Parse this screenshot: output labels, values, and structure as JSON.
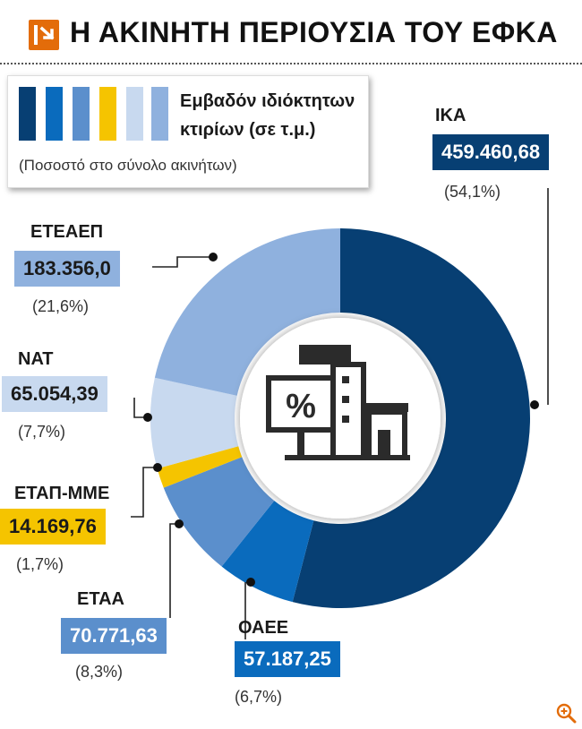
{
  "header": {
    "title": "Η ΑΚΙΝΗΤΗ ΠΕΡΙΟΥΣΙΑ ΤΟΥ ΕΦΚΑ",
    "logo_icon": "arrow-logo-icon"
  },
  "legend": {
    "label": "Εμβαδόν ιδιόκτητων κτιρίων (σε τ.μ.)",
    "note": "(Ποσοστό στο σύνολο ακινήτων)"
  },
  "center_icon": "buildings-percent-icon",
  "zoom_icon": "zoom-in-icon",
  "chart_data": {
    "type": "donut",
    "title": "Η ΑΚΙΝΗΤΗ ΠΕΡΙΟΥΣΙΑ ΤΟΥ ΕΦΚΑ",
    "unit": "τ.μ.",
    "slices": [
      {
        "name": "ΙΚΑ",
        "value_label": "459.460,68",
        "value": 459460.68,
        "pct_label": "(54,1%)",
        "pct": 54.1,
        "color": "#073f73"
      },
      {
        "name": "ΟΑΕΕ",
        "value_label": "57.187,25",
        "value": 57187.25,
        "pct_label": "(6,7%)",
        "pct": 6.7,
        "color": "#0a6bbd"
      },
      {
        "name": "ΕΤΑΑ",
        "value_label": "70.771,63",
        "value": 70771.63,
        "pct_label": "(8,3%)",
        "pct": 8.3,
        "color": "#5b8fcc"
      },
      {
        "name": "ΕΤΑΠ-ΜΜΕ",
        "value_label": "14.169,76",
        "value": 14169.76,
        "pct_label": "(1,7%)",
        "pct": 1.7,
        "color": "#f5c400"
      },
      {
        "name": "ΝΑΤ",
        "value_label": "65.054,39",
        "value": 65054.39,
        "pct_label": "(7,7%)",
        "pct": 7.7,
        "color": "#c8d9ef"
      },
      {
        "name": "ΕΤΕΑΕΠ",
        "value_label": "183.356,0",
        "value": 183356.0,
        "pct_label": "(21,6%)",
        "pct": 21.6,
        "color": "#8fb1de"
      }
    ]
  }
}
